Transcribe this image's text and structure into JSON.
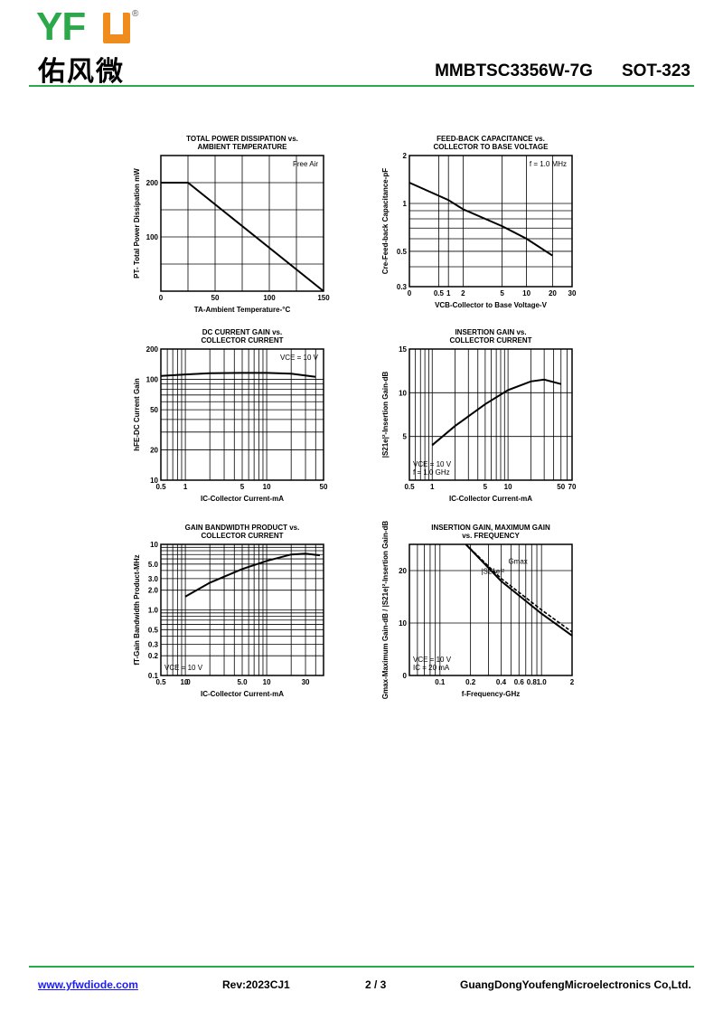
{
  "logo": {
    "letters": "YF",
    "reg": "®",
    "chinese": "佑风微"
  },
  "header": {
    "part": "MMBTSC3356W-7G",
    "package": "SOT-323"
  },
  "footer": {
    "website": "www.yfwdiode.com",
    "rev": "Rev:2023CJ1",
    "page": "2 / 3",
    "company": "GuangDongYoufengMicroelectronics Co,Ltd."
  },
  "colors": {
    "green": "#2ba84a",
    "orange": "#f08c1e",
    "link": "#1a1aff"
  },
  "chart_data": [
    {
      "type": "line",
      "title": [
        "TOTAL POWER DISSIPATION vs.",
        "AMBIENT TEMPERATURE"
      ],
      "xlabel": "TA-Ambient Temperature-°C",
      "ylabel": "PT- Total Power Dissipation mW",
      "xlim": [
        0,
        150
      ],
      "ylim": [
        0,
        250
      ],
      "yscale": "linear",
      "xticks": [
        {
          "v": 0,
          "t": "0"
        },
        {
          "v": 50,
          "t": "50"
        },
        {
          "v": 100,
          "t": "100"
        },
        {
          "v": 150,
          "t": "150"
        }
      ],
      "yticks": [
        {
          "v": 100,
          "t": "100"
        },
        {
          "v": 200,
          "t": "200"
        }
      ],
      "vgrid": [
        25,
        50,
        75,
        100,
        125
      ],
      "hgrid": [
        50,
        100,
        150,
        200
      ],
      "annotation": "Free Air",
      "series": [
        {
          "x": [
            0,
            25,
            150
          ],
          "y": [
            200,
            200,
            0
          ]
        }
      ]
    },
    {
      "type": "line",
      "title": [
        "FEED-BACK CAPACITANCE vs.",
        "COLLECTOR TO BASE VOLTAGE"
      ],
      "xlabel": "VCB-Collector to Base Voltage-V",
      "ylabel": "Cre-Feed-back Capacitance-pF",
      "xlim": [
        0,
        30
      ],
      "ylim": [
        0.3,
        2
      ],
      "yscale": "log",
      "xticks": [
        {
          "v": 0,
          "t": "0"
        },
        {
          "v": 0.5,
          "t": "0.5"
        },
        {
          "v": 1,
          "t": "1"
        },
        {
          "v": 2,
          "t": "2"
        },
        {
          "v": 5,
          "t": "5"
        },
        {
          "v": 10,
          "t": "10"
        },
        {
          "v": 20,
          "t": "20"
        },
        {
          "v": 30,
          "t": "30"
        }
      ],
      "yticks": [
        {
          "v": 0.3,
          "t": "0.3"
        },
        {
          "v": 0.5,
          "t": "0.5"
        },
        {
          "v": 1,
          "t": "1"
        },
        {
          "v": 2,
          "t": "2"
        }
      ],
      "annotation": "f = 1.0 MHz",
      "series": [
        {
          "x": [
            0,
            1,
            2,
            5,
            10,
            20
          ],
          "y": [
            1.35,
            1.05,
            0.92,
            0.72,
            0.6,
            0.47
          ]
        }
      ]
    },
    {
      "type": "line",
      "title": [
        "DC CURRENT GAIN vs.",
        "COLLECTOR CURRENT"
      ],
      "xlabel": "IC-Collector Current-mA",
      "ylabel": "hFE-DC Current Gain",
      "xlim": [
        0.5,
        50
      ],
      "ylim": [
        10,
        200
      ],
      "xscale": "log",
      "yscale": "log",
      "xticks": [
        {
          "v": 0.5,
          "t": "0.5"
        },
        {
          "v": 1,
          "t": "1"
        },
        {
          "v": 5,
          "t": "5"
        },
        {
          "v": 10,
          "t": "10"
        },
        {
          "v": 50,
          "t": "50"
        }
      ],
      "yticks": [
        {
          "v": 10,
          "t": "10"
        },
        {
          "v": 20,
          "t": "20"
        },
        {
          "v": 50,
          "t": "50"
        },
        {
          "v": 100,
          "t": "100"
        },
        {
          "v": 200,
          "t": "200"
        }
      ],
      "annotation": "VCE = 10 V",
      "series": [
        {
          "x": [
            0.5,
            1,
            2,
            5,
            10,
            20,
            40
          ],
          "y": [
            108,
            112,
            115,
            116,
            116,
            114,
            106
          ]
        }
      ]
    },
    {
      "type": "line",
      "title": [
        "INSERTION GAIN vs.",
        "COLLECTOR CURRENT"
      ],
      "xlabel": "IC-Collector Current-mA",
      "ylabel": "|S21e|²-Insertion Gain-dB",
      "xlim": [
        0.5,
        70
      ],
      "ylim": [
        0,
        15
      ],
      "xscale": "log",
      "yscale": "linear",
      "xticks": [
        {
          "v": 0.5,
          "t": "0.5"
        },
        {
          "v": 1,
          "t": "1"
        },
        {
          "v": 5,
          "t": "5"
        },
        {
          "v": 10,
          "t": "10"
        },
        {
          "v": 50,
          "t": "50"
        },
        {
          "v": 70,
          "t": "70"
        }
      ],
      "yticks": [
        {
          "v": 5,
          "t": "5"
        },
        {
          "v": 10,
          "t": "10"
        },
        {
          "v": 15,
          "t": "15"
        }
      ],
      "annotation": [
        "VCE = 10 V",
        "f = 1.0 GHz"
      ],
      "series": [
        {
          "x": [
            1,
            2,
            5,
            10,
            20,
            30,
            50
          ],
          "y": [
            4,
            6.2,
            8.7,
            10.3,
            11.3,
            11.5,
            11
          ]
        }
      ]
    },
    {
      "type": "line",
      "title": [
        "GAIN BANDWIDTH PRODUCT vs.",
        "COLLECTOR CURRENT"
      ],
      "xlabel": "IC-Collector Current-mA",
      "ylabel": "fT-Gain Bandwidth Product-MHz",
      "xlim": [
        0.5,
        50
      ],
      "ylim": [
        0.1,
        10
      ],
      "xscale": "log",
      "yscale": "log",
      "xticks": [
        {
          "v": 0.5,
          "t": "0.5"
        },
        {
          "v": 1,
          "t": "1.0"
        },
        {
          "v": 5,
          "t": "5.0"
        },
        {
          "v": 10,
          "t": "10"
        },
        {
          "v": 30,
          "t": "30"
        }
      ],
      "xextra": {
        "t": "0",
        "pos": -0.11
      },
      "yticks": [
        {
          "v": 0.1,
          "t": "0.1"
        },
        {
          "v": 0.2,
          "t": "0.2"
        },
        {
          "v": 0.3,
          "t": "0.3"
        },
        {
          "v": 0.5,
          "t": "0.5"
        },
        {
          "v": 1,
          "t": "1.0"
        },
        {
          "v": 2,
          "t": "2.0"
        },
        {
          "v": 3,
          "t": "3.0"
        },
        {
          "v": 5,
          "t": "5.0"
        },
        {
          "v": 10,
          "t": "10"
        }
      ],
      "annotation": "VCE = 10 V",
      "series": [
        {
          "x": [
            1,
            2,
            5,
            10,
            20,
            30,
            45
          ],
          "y": [
            1.6,
            2.6,
            4.2,
            5.6,
            7,
            7.2,
            6.8
          ]
        }
      ]
    },
    {
      "type": "line",
      "title": [
        "INSERTION GAIN, MAXIMUM GAIN",
        "vs. FREQUENCY"
      ],
      "xlabel": "f-Frequency-GHz",
      "ylabel": "Gmax-Maximum Gain-dB / |S21e|²-Insertion Gain-dB",
      "xlim": [
        0.05,
        2
      ],
      "ylim": [
        0,
        25
      ],
      "xscale": "log",
      "yscale": "linear",
      "xticks": [
        {
          "v": 0.1,
          "t": "0.1"
        },
        {
          "v": 0.2,
          "t": "0.2"
        },
        {
          "v": 0.4,
          "t": "0.4"
        },
        {
          "v": 0.6,
          "t": "0.6"
        },
        {
          "v": 0.8,
          "t": "0.8"
        },
        {
          "v": 1,
          "t": "1.0"
        },
        {
          "v": 2,
          "t": "2"
        }
      ],
      "yticks": [
        {
          "v": 0,
          "t": "0"
        },
        {
          "v": 10,
          "t": "10"
        },
        {
          "v": 20,
          "t": "20"
        }
      ],
      "annotation": [
        "VCE = 10 V",
        "IC = 20 mA"
      ],
      "series": [
        {
          "name": "Gmax",
          "x": [
            0.18,
            0.4,
            1,
            2
          ],
          "y": [
            25,
            18.5,
            12.5,
            8.3
          ],
          "dash": true
        },
        {
          "name": "|S21e|²",
          "x": [
            0.18,
            0.4,
            1,
            2
          ],
          "y": [
            25,
            18,
            11.8,
            7.6
          ]
        }
      ]
    }
  ]
}
